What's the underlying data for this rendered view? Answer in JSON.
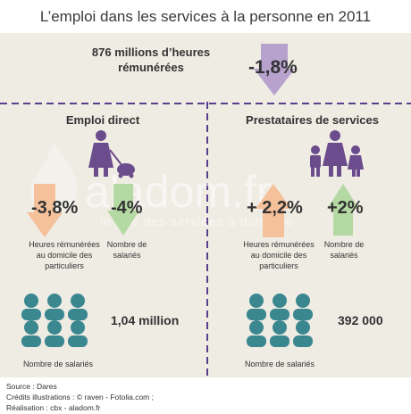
{
  "title": "L’emploi dans les services à la personne en 2011",
  "summary": {
    "hours": "876 millions  d’heures rémunérées",
    "change": "-1,8%"
  },
  "direct": {
    "title": "Emploi direct",
    "hours_change": "-3,8%",
    "hours_label": "Heures rémunérées au domicile des particuliers",
    "employees_change": "-4%",
    "employees_label": "Nombre de salariés",
    "count": "1,04 million",
    "count_label": "Nombre de salariés"
  },
  "providers": {
    "title": "Prestataires de services",
    "hours_change": "+ 2,2%",
    "hours_label": "Heures rémunérées au domicile des particuliers",
    "employees_change": "+2%",
    "employees_label": "Nombre de salariés",
    "count": "392 000",
    "count_label": "Nombre de salariés"
  },
  "watermark": {
    "name": "aladom.fr",
    "tagline": "le site des services à domicile"
  },
  "footer": {
    "source": "Source : Dares",
    "credits": "Crédits illustrations : © raven - Fotolia.com ;",
    "realisation": "Réalisation : cbx - aladom.fr"
  },
  "colors": {
    "background": "#efece4",
    "purple": "#6b4c8c",
    "purple_light": "#b6a2cc",
    "teal": "#3b8790",
    "orange_light": "#f5c19b",
    "green_light": "#b4d9a2",
    "dash": "#5a3f8c"
  }
}
